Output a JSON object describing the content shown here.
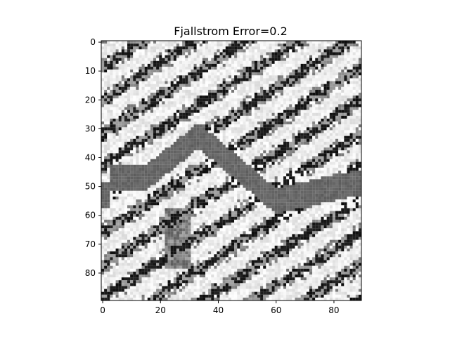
{
  "chart_data": {
    "type": "heatmap",
    "title": "Fjallstrom Error=0.2",
    "colormap": "gray",
    "xlabel": "",
    "ylabel": "",
    "x_ticks": [
      0,
      20,
      40,
      60,
      80
    ],
    "y_ticks": [
      0,
      10,
      20,
      30,
      40,
      50,
      60,
      70,
      80
    ],
    "xlim": [
      -0.5,
      89.5
    ],
    "ylim": [
      89.5,
      -0.5
    ],
    "grid_size": [
      90,
      90
    ],
    "grid": false,
    "legend": "none"
  }
}
